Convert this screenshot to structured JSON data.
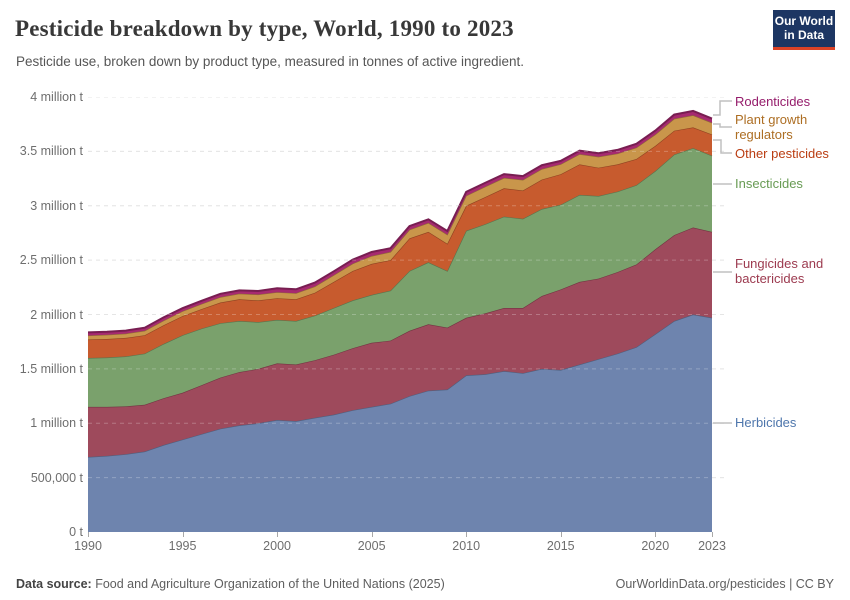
{
  "header": {
    "title": "Pesticide breakdown by type, World, 1990 to 2023",
    "subtitle": "Pesticide use, broken down by product type, measured in tonnes of active ingredient.",
    "logo_line1": "Our World",
    "logo_line2": "in Data"
  },
  "colors": {
    "logo_background": "#1d3663",
    "logo_underline": "#dc4226",
    "gridline": "#dcdcdc",
    "axis_text": "#6e6e6e"
  },
  "chart_data": {
    "type": "area",
    "stacked": true,
    "title": "Pesticide breakdown by type, World, 1990 to 2023",
    "xlabel": "",
    "ylabel": "tonnes of active ingredient",
    "xlim": [
      1990,
      2023
    ],
    "ylim": [
      0,
      4000000
    ],
    "grid": true,
    "legend_position": "right",
    "x": [
      1990,
      1991,
      1992,
      1993,
      1994,
      1995,
      1996,
      1997,
      1998,
      1999,
      2000,
      2001,
      2002,
      2003,
      2004,
      2005,
      2006,
      2007,
      2008,
      2009,
      2010,
      2011,
      2012,
      2013,
      2014,
      2015,
      2016,
      2017,
      2018,
      2019,
      2020,
      2021,
      2022,
      2023
    ],
    "xticks": [
      1990,
      1995,
      2000,
      2005,
      2010,
      2015,
      2020,
      2023
    ],
    "yticks": [
      {
        "v": 0,
        "label": "0 t"
      },
      {
        "v": 500000,
        "label": "500,000 t"
      },
      {
        "v": 1000000,
        "label": "1 million t"
      },
      {
        "v": 1500000,
        "label": "1.5 million t"
      },
      {
        "v": 2000000,
        "label": "2 million t"
      },
      {
        "v": 2500000,
        "label": "2.5 million t"
      },
      {
        "v": 3000000,
        "label": "3 million t"
      },
      {
        "v": 3500000,
        "label": "3.5 million t"
      },
      {
        "v": 4000000,
        "label": "4 million t"
      }
    ],
    "series": [
      {
        "id": "herbicides",
        "name": "Herbicides",
        "color": "#6e84ae",
        "text_color": "#4e76ac",
        "values": [
          690000,
          700000,
          715000,
          740000,
          800000,
          850000,
          900000,
          950000,
          980000,
          1000000,
          1030000,
          1020000,
          1050000,
          1080000,
          1120000,
          1150000,
          1180000,
          1250000,
          1300000,
          1310000,
          1440000,
          1450000,
          1480000,
          1460000,
          1500000,
          1490000,
          1540000,
          1590000,
          1640000,
          1700000,
          1820000,
          1940000,
          2000000,
          1970000
        ]
      },
      {
        "id": "fungicides",
        "name": "Fungicides and bactericides",
        "color": "#9e4a5c",
        "text_color": "#9c3a4f",
        "values": [
          460000,
          450000,
          440000,
          430000,
          430000,
          430000,
          450000,
          470000,
          490000,
          500000,
          520000,
          520000,
          530000,
          550000,
          570000,
          590000,
          580000,
          600000,
          610000,
          570000,
          530000,
          560000,
          580000,
          600000,
          670000,
          740000,
          760000,
          740000,
          750000,
          760000,
          780000,
          790000,
          800000,
          790000
        ]
      },
      {
        "id": "insecticides",
        "name": "Insecticides",
        "color": "#7aa16c",
        "text_color": "#689b54",
        "values": [
          450000,
          455000,
          460000,
          470000,
          500000,
          530000,
          520000,
          500000,
          470000,
          430000,
          400000,
          400000,
          410000,
          430000,
          440000,
          440000,
          460000,
          550000,
          570000,
          520000,
          800000,
          820000,
          840000,
          820000,
          800000,
          780000,
          800000,
          760000,
          740000,
          730000,
          720000,
          740000,
          730000,
          700000
        ]
      },
      {
        "id": "other",
        "name": "Other pesticides",
        "color": "#c75b2e",
        "text_color": "#ba3d12",
        "values": [
          170000,
          170000,
          170000,
          170000,
          172000,
          175000,
          180000,
          190000,
          200000,
          200000,
          200000,
          200000,
          210000,
          240000,
          270000,
          285000,
          280000,
          300000,
          280000,
          250000,
          230000,
          250000,
          260000,
          260000,
          270000,
          280000,
          280000,
          260000,
          250000,
          240000,
          230000,
          220000,
          190000,
          195000
        ]
      },
      {
        "id": "pgr",
        "name": "Plant growth regulators",
        "color": "#c9964b",
        "text_color": "#ad6e23",
        "values": [
          37000,
          38000,
          39000,
          40000,
          42000,
          45000,
          47000,
          50000,
          52000,
          54000,
          55000,
          56000,
          58000,
          62000,
          68000,
          73000,
          76000,
          80000,
          82000,
          85000,
          92000,
          95000,
          96000,
          98000,
          98000,
          92000,
          95000,
          100000,
          100000,
          105000,
          105000,
          110000,
          112000,
          108000
        ]
      },
      {
        "id": "rodenticides",
        "name": "Rodenticides",
        "color": "#a62a70",
        "text_color": "#951c6b",
        "values": [
          28000,
          28000,
          28000,
          29000,
          29000,
          28000,
          29000,
          30000,
          30000,
          32000,
          37000,
          36000,
          35000,
          35000,
          36000,
          37000,
          34000,
          33000,
          33000,
          33000,
          35000,
          35000,
          35000,
          35000,
          35000,
          30000,
          32000,
          33000,
          34000,
          35000,
          36000,
          38000,
          40000,
          38000
        ]
      }
    ]
  },
  "legend": {
    "entries": [
      {
        "id": "rodenticides",
        "label": "Rodenticides",
        "color": "#951c6b"
      },
      {
        "id": "pgr",
        "label": "Plant growth regulators",
        "color": "#ad6e23"
      },
      {
        "id": "other",
        "label": "Other pesticides",
        "color": "#ba3d12"
      },
      {
        "id": "insecticides",
        "label": "Insecticides",
        "color": "#689b54"
      },
      {
        "id": "fungicides",
        "label": "Fungicides and bactericides",
        "color": "#9c3a4f"
      },
      {
        "id": "herbicides",
        "label": "Herbicides",
        "color": "#4e76ac"
      }
    ]
  },
  "footer": {
    "source_label": "Data source:",
    "source": "Food and Agriculture Organization of the United Nations (2025)",
    "right": "OurWorldinData.org/pesticides | CC BY"
  }
}
